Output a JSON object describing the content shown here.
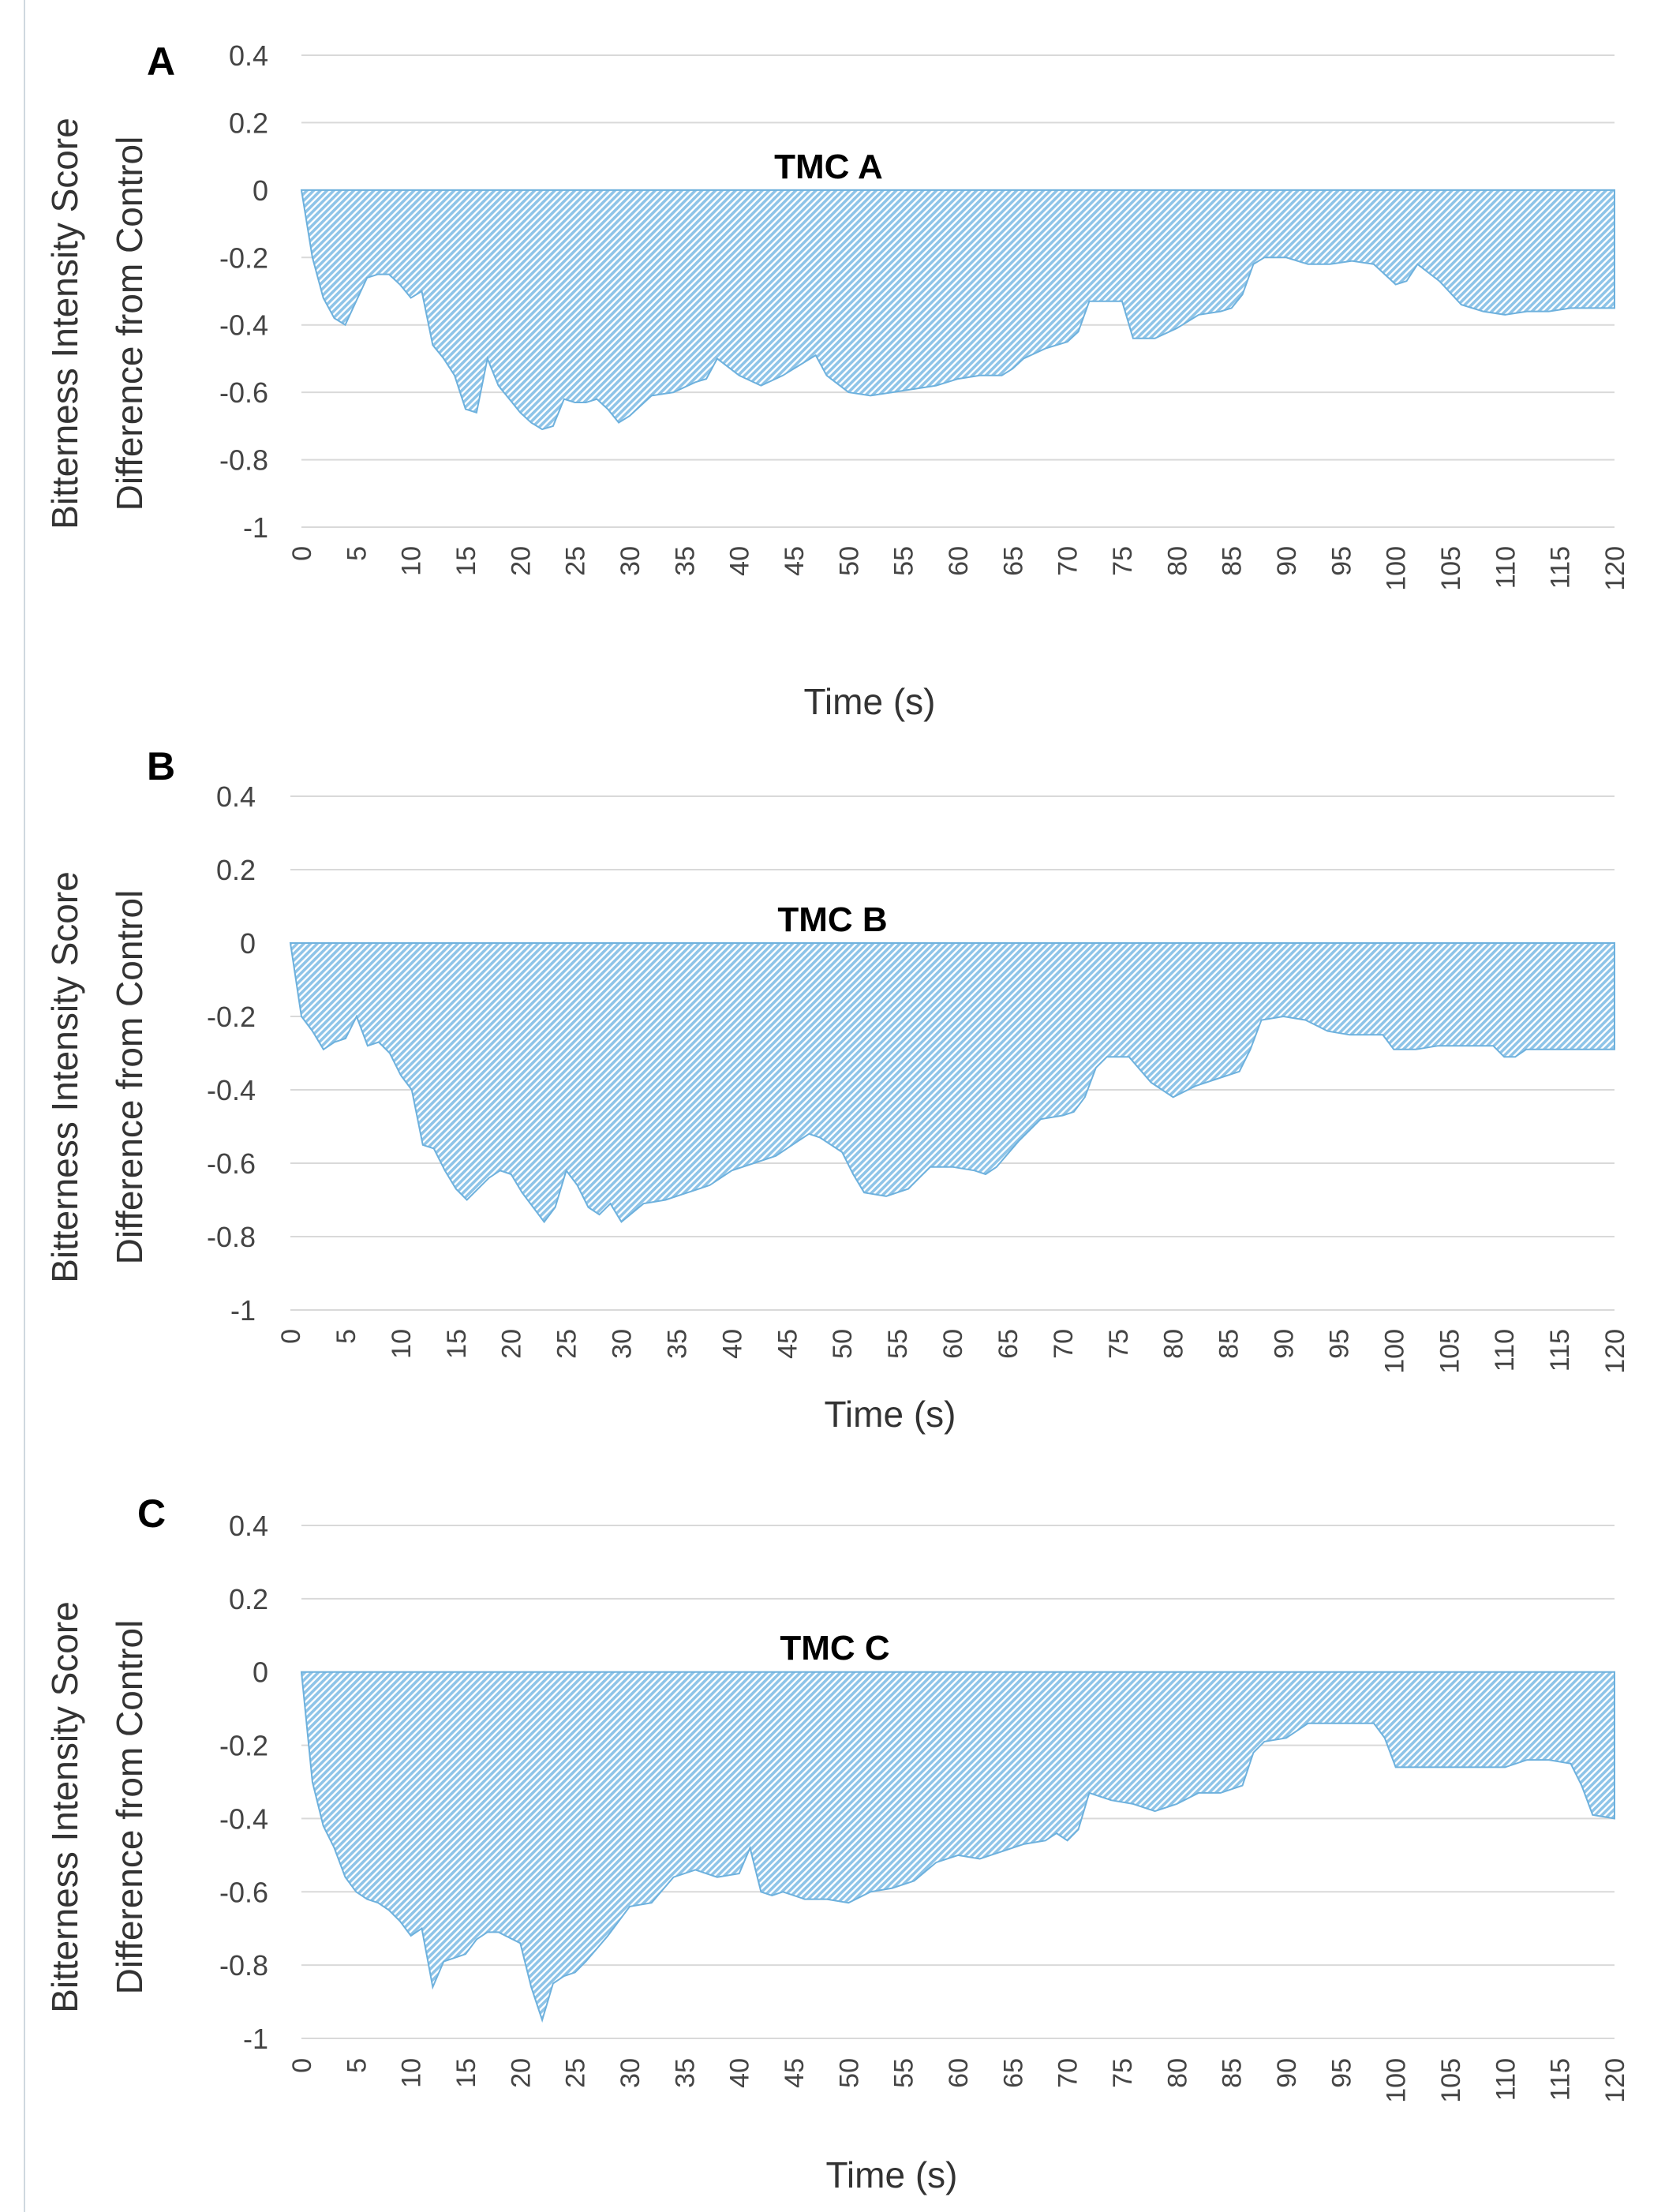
{
  "figure": {
    "panel_labels": [
      "A",
      "B",
      "C"
    ]
  },
  "colors": {
    "area_fill": "#8ec4e8",
    "area_edge": "#6eb1dd",
    "gridline": "#d9d9d9",
    "text": "#404040"
  },
  "chart_data": [
    {
      "type": "area",
      "panel": "A",
      "title": "TMC A",
      "ylabel_line1": "Bitterness Intensity Score",
      "ylabel_line2": "Difference from Control",
      "xlabel": "Time (s)",
      "ylim": [
        -1,
        0.4
      ],
      "xlim": [
        0,
        120
      ],
      "yticks": [
        0.4,
        0.2,
        0,
        -0.2,
        -0.4,
        -0.6,
        -0.8,
        -1
      ],
      "ytick_labels": [
        "0.4",
        "0.2",
        "0",
        "-0.2",
        "-0.4",
        "-0.6",
        "-0.8",
        "-1"
      ],
      "xticks": [
        0,
        5,
        10,
        15,
        20,
        25,
        30,
        35,
        40,
        45,
        50,
        55,
        60,
        65,
        70,
        75,
        80,
        85,
        90,
        95,
        100,
        105,
        110,
        115,
        120
      ],
      "xtick_labels": [
        "0",
        "5",
        "10",
        "15",
        "20",
        "25",
        "30",
        "35",
        "40",
        "45",
        "50",
        "55",
        "60",
        "65",
        "70",
        "75",
        "80",
        "85",
        "90",
        "95",
        "100",
        "105",
        "110",
        "115",
        "120"
      ],
      "grid": true,
      "x": [
        0,
        1,
        2,
        3,
        4,
        5,
        6,
        7,
        8,
        9,
        10,
        11,
        12,
        13,
        14,
        15,
        16,
        17,
        18,
        19,
        20,
        21,
        22,
        23,
        24,
        25,
        26,
        27,
        28,
        29,
        30,
        32,
        34,
        36,
        37,
        38,
        40,
        42,
        44,
        46,
        47,
        48,
        50,
        52,
        54,
        56,
        58,
        60,
        62,
        64,
        65,
        66,
        68,
        70,
        71,
        72,
        74,
        75,
        76,
        78,
        80,
        82,
        84,
        85,
        86,
        87,
        88,
        90,
        92,
        94,
        96,
        98,
        99,
        100,
        101,
        102,
        104,
        106,
        108,
        110,
        112,
        114,
        116,
        118,
        120
      ],
      "values": [
        0,
        -0.2,
        -0.32,
        -0.38,
        -0.4,
        -0.33,
        -0.26,
        -0.25,
        -0.25,
        -0.28,
        -0.32,
        -0.3,
        -0.46,
        -0.5,
        -0.55,
        -0.65,
        -0.66,
        -0.5,
        -0.58,
        -0.62,
        -0.66,
        -0.69,
        -0.71,
        -0.7,
        -0.62,
        -0.63,
        -0.63,
        -0.62,
        -0.65,
        -0.69,
        -0.67,
        -0.61,
        -0.6,
        -0.57,
        -0.56,
        -0.5,
        -0.55,
        -0.58,
        -0.55,
        -0.51,
        -0.49,
        -0.55,
        -0.6,
        -0.61,
        -0.6,
        -0.59,
        -0.58,
        -0.56,
        -0.55,
        -0.55,
        -0.53,
        -0.5,
        -0.47,
        -0.45,
        -0.42,
        -0.33,
        -0.33,
        -0.33,
        -0.44,
        -0.44,
        -0.41,
        -0.37,
        -0.36,
        -0.35,
        -0.31,
        -0.22,
        -0.2,
        -0.2,
        -0.22,
        -0.22,
        -0.21,
        -0.22,
        -0.25,
        -0.28,
        -0.27,
        -0.22,
        -0.27,
        -0.34,
        -0.36,
        -0.37,
        -0.36,
        -0.36,
        -0.35,
        -0.35,
        -0.35
      ]
    },
    {
      "type": "area",
      "panel": "B",
      "title": "TMC B",
      "ylabel_line1": "Bitterness Intensity  Score",
      "ylabel_line2": "Difference from Control",
      "xlabel": "Time (s)",
      "ylim": [
        -1,
        0.4
      ],
      "xlim": [
        0,
        120
      ],
      "yticks": [
        0.4,
        0.2,
        0,
        -0.2,
        -0.4,
        -0.6,
        -0.8,
        -1
      ],
      "ytick_labels": [
        "0.4",
        "0.2",
        "0",
        "-0.2",
        "-0.4",
        "-0.6",
        "-0.8",
        "-1"
      ],
      "xticks": [
        0,
        5,
        10,
        15,
        20,
        25,
        30,
        35,
        40,
        45,
        50,
        55,
        60,
        65,
        70,
        75,
        80,
        85,
        90,
        95,
        100,
        105,
        110,
        115,
        120
      ],
      "xtick_labels": [
        "0",
        "5",
        "10",
        "15",
        "20",
        "25",
        "30",
        "35",
        "40",
        "45",
        "50",
        "55",
        "60",
        "65",
        "70",
        "75",
        "80",
        "85",
        "90",
        "95",
        "100",
        "105",
        "110",
        "115",
        "120"
      ],
      "grid": true,
      "x": [
        0,
        1,
        2,
        3,
        4,
        5,
        6,
        7,
        8,
        9,
        10,
        11,
        12,
        13,
        14,
        15,
        16,
        18,
        19,
        20,
        21,
        22,
        23,
        24,
        25,
        26,
        27,
        28,
        29,
        30,
        32,
        34,
        36,
        38,
        40,
        42,
        44,
        46,
        47,
        48,
        50,
        51,
        52,
        54,
        56,
        57,
        58,
        60,
        62,
        63,
        64,
        66,
        68,
        70,
        71,
        72,
        73,
        74,
        76,
        78,
        80,
        82,
        84,
        86,
        87,
        88,
        90,
        92,
        94,
        96,
        98,
        99,
        100,
        102,
        104,
        106,
        108,
        109,
        110,
        111,
        112,
        114,
        116,
        118,
        120
      ],
      "values": [
        0,
        -0.2,
        -0.24,
        -0.29,
        -0.27,
        -0.26,
        -0.2,
        -0.28,
        -0.27,
        -0.3,
        -0.36,
        -0.4,
        -0.55,
        -0.56,
        -0.62,
        -0.67,
        -0.7,
        -0.64,
        -0.62,
        -0.63,
        -0.68,
        -0.72,
        -0.76,
        -0.72,
        -0.62,
        -0.66,
        -0.72,
        -0.74,
        -0.71,
        -0.76,
        -0.71,
        -0.7,
        -0.68,
        -0.66,
        -0.62,
        -0.6,
        -0.58,
        -0.54,
        -0.52,
        -0.53,
        -0.57,
        -0.63,
        -0.68,
        -0.69,
        -0.67,
        -0.64,
        -0.61,
        -0.61,
        -0.62,
        -0.63,
        -0.61,
        -0.54,
        -0.48,
        -0.47,
        -0.46,
        -0.42,
        -0.34,
        -0.31,
        -0.31,
        -0.38,
        -0.42,
        -0.39,
        -0.37,
        -0.35,
        -0.29,
        -0.21,
        -0.2,
        -0.21,
        -0.24,
        -0.25,
        -0.25,
        -0.25,
        -0.29,
        -0.29,
        -0.28,
        -0.28,
        -0.28,
        -0.28,
        -0.31,
        -0.31,
        -0.29,
        -0.29,
        -0.29,
        -0.29,
        -0.29
      ]
    },
    {
      "type": "area",
      "panel": "C",
      "title": "TMC C",
      "ylabel_line1": "Bitterness Intensity  Score",
      "ylabel_line2": "Difference from Control",
      "xlabel": "Time (s)",
      "ylim": [
        -1,
        0.4
      ],
      "xlim": [
        0,
        120
      ],
      "yticks": [
        0.4,
        0.2,
        0,
        -0.2,
        -0.4,
        -0.6,
        -0.8,
        -1
      ],
      "ytick_labels": [
        "0.4",
        "0.2",
        "0",
        "-0.2",
        "-0.4",
        "-0.6",
        "-0.8",
        "-1"
      ],
      "xticks": [
        0,
        5,
        10,
        15,
        20,
        25,
        30,
        35,
        40,
        45,
        50,
        55,
        60,
        65,
        70,
        75,
        80,
        85,
        90,
        95,
        100,
        105,
        110,
        115,
        120
      ],
      "xtick_labels": [
        "0",
        "5",
        "10",
        "15",
        "20",
        "25",
        "30",
        "35",
        "40",
        "45",
        "50",
        "55",
        "60",
        "65",
        "70",
        "75",
        "80",
        "85",
        "90",
        "95",
        "100",
        "105",
        "110",
        "115",
        "120"
      ],
      "grid": true,
      "x": [
        0,
        1,
        2,
        3,
        4,
        5,
        6,
        7,
        8,
        9,
        10,
        11,
        12,
        13,
        14,
        15,
        16,
        17,
        18,
        20,
        21,
        22,
        23,
        24,
        25,
        26,
        28,
        30,
        32,
        34,
        36,
        38,
        40,
        41,
        42,
        43,
        44,
        46,
        48,
        50,
        52,
        54,
        56,
        58,
        60,
        62,
        64,
        66,
        68,
        69,
        70,
        71,
        72,
        74,
        76,
        78,
        80,
        82,
        84,
        86,
        87,
        88,
        90,
        92,
        94,
        96,
        98,
        99,
        100,
        102,
        104,
        106,
        108,
        110,
        112,
        114,
        116,
        117,
        118,
        120
      ],
      "values": [
        0,
        -0.3,
        -0.42,
        -0.48,
        -0.56,
        -0.6,
        -0.62,
        -0.63,
        -0.65,
        -0.68,
        -0.72,
        -0.7,
        -0.86,
        -0.79,
        -0.78,
        -0.77,
        -0.73,
        -0.71,
        -0.71,
        -0.74,
        -0.86,
        -0.95,
        -0.85,
        -0.83,
        -0.82,
        -0.79,
        -0.72,
        -0.64,
        -0.63,
        -0.56,
        -0.54,
        -0.56,
        -0.55,
        -0.48,
        -0.6,
        -0.61,
        -0.6,
        -0.62,
        -0.62,
        -0.63,
        -0.6,
        -0.59,
        -0.57,
        -0.52,
        -0.5,
        -0.51,
        -0.49,
        -0.47,
        -0.46,
        -0.44,
        -0.46,
        -0.43,
        -0.33,
        -0.35,
        -0.36,
        -0.38,
        -0.36,
        -0.33,
        -0.33,
        -0.31,
        -0.22,
        -0.19,
        -0.18,
        -0.14,
        -0.14,
        -0.14,
        -0.14,
        -0.18,
        -0.26,
        -0.26,
        -0.26,
        -0.26,
        -0.26,
        -0.26,
        -0.24,
        -0.24,
        -0.25,
        -0.31,
        -0.39,
        -0.4
      ]
    }
  ]
}
